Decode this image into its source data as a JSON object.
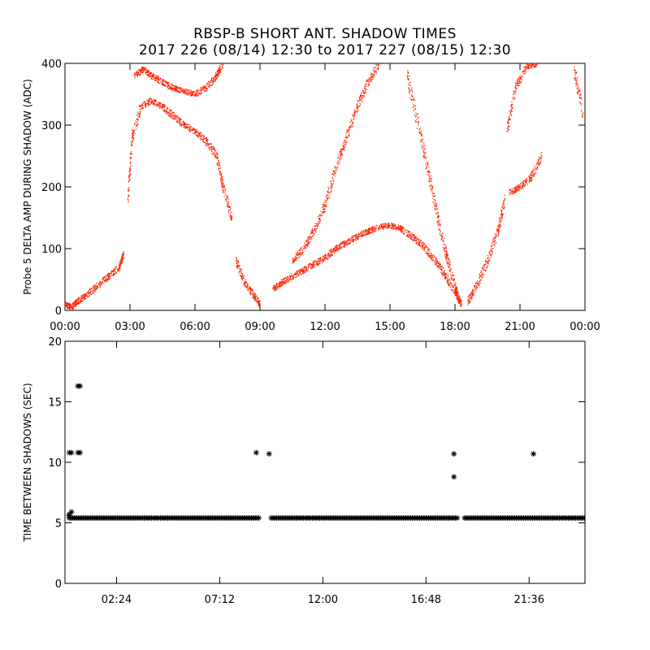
{
  "title_line1": "RBSP-B SHORT ANT. SHADOW TIMES",
  "title_line2": "2017 226 (08/14) 12:30 to 2017 227 (08/15) 12:30",
  "chart_data": [
    {
      "type": "scatter",
      "ylabel": "Probe 5 DELTA AMP DURING SHADOW (ADC)",
      "xlim": [
        0,
        24
      ],
      "ylim": [
        0,
        400
      ],
      "xticks": [
        0,
        3,
        6,
        9,
        12,
        15,
        18,
        21,
        24
      ],
      "xtick_labels": [
        "00:00",
        "03:00",
        "06:00",
        "09:00",
        "12:00",
        "15:00",
        "18:00",
        "21:00",
        "00:00"
      ],
      "yticks": [
        0,
        100,
        200,
        300,
        400
      ],
      "ytick_labels": [
        "0",
        "100",
        "200",
        "300",
        "400"
      ],
      "point_color": "#ff2000",
      "series": [
        {
          "x": [
            0.0,
            0.3,
            0.6,
            1.0,
            1.5,
            2.0,
            2.5,
            2.7
          ],
          "y": [
            10,
            5,
            15,
            25,
            40,
            55,
            70,
            90
          ]
        },
        {
          "x": [
            2.9,
            3.1,
            3.5,
            4.0,
            4.5,
            5.0,
            5.5,
            6.0,
            6.5,
            7.0,
            7.3,
            7.7
          ],
          "y": [
            180,
            280,
            330,
            340,
            330,
            315,
            300,
            290,
            275,
            250,
            200,
            150
          ]
        },
        {
          "x": [
            3.2,
            3.6,
            4.0,
            4.5,
            5.0,
            5.5,
            6.0,
            6.5,
            7.0,
            7.3
          ],
          "y": [
            380,
            390,
            380,
            370,
            360,
            355,
            350,
            360,
            380,
            400
          ]
        },
        {
          "x": [
            7.9,
            8.3,
            8.7,
            9.0
          ],
          "y": [
            80,
            45,
            25,
            10
          ]
        },
        {
          "x": [
            9.6,
            10.0,
            10.5,
            11.0,
            11.5,
            12.0,
            12.5,
            13.0,
            13.5,
            14.0,
            14.5,
            15.0,
            15.5,
            16.0,
            16.5,
            17.0,
            17.5,
            18.0,
            18.3
          ],
          "y": [
            35,
            45,
            55,
            65,
            75,
            85,
            100,
            110,
            120,
            128,
            135,
            138,
            132,
            120,
            105,
            85,
            60,
            30,
            10
          ]
        },
        {
          "x": [
            10.5,
            11.0,
            11.5,
            12.0,
            12.5,
            13.0,
            13.5,
            14.0,
            14.5
          ],
          "y": [
            80,
            100,
            130,
            170,
            230,
            280,
            330,
            370,
            400
          ]
        },
        {
          "x": [
            15.8,
            16.3,
            16.8,
            17.2,
            17.6,
            18.0,
            18.2
          ],
          "y": [
            380,
            300,
            220,
            150,
            90,
            40,
            15
          ]
        },
        {
          "x": [
            18.6,
            19.0,
            19.5,
            20.0,
            20.3
          ],
          "y": [
            15,
            40,
            80,
            130,
            180
          ]
        },
        {
          "x": [
            20.5,
            21.0,
            21.5,
            22.0
          ],
          "y": [
            190,
            200,
            215,
            250
          ]
        },
        {
          "x": [
            20.4,
            20.8,
            21.3,
            21.8
          ],
          "y": [
            290,
            360,
            395,
            400
          ]
        },
        {
          "x": [
            23.5,
            23.9
          ],
          "y": [
            390,
            320
          ]
        }
      ]
    },
    {
      "type": "scatter",
      "ylabel": "TIME BETWEEN SHADOWS (SEC)",
      "xlim": [
        0,
        24.2
      ],
      "ylim": [
        0,
        20
      ],
      "xticks": [
        2.4,
        7.2,
        12.0,
        16.8,
        21.6
      ],
      "xtick_labels": [
        "02:24",
        "07:12",
        "12:00",
        "16:48",
        "21:36"
      ],
      "yticks": [
        0,
        5,
        10,
        15,
        20
      ],
      "ytick_labels": [
        "0",
        "5",
        "10",
        "15",
        "20"
      ],
      "marker": "asterisk",
      "baseline": {
        "y": 5.4,
        "x_ranges": [
          [
            0.2,
            9.1
          ],
          [
            9.6,
            18.3
          ],
          [
            18.6,
            24.2
          ]
        ]
      },
      "points": [
        {
          "x": 0.2,
          "y": 10.8
        },
        {
          "x": 0.3,
          "y": 10.8
        },
        {
          "x": 0.2,
          "y": 5.7
        },
        {
          "x": 0.3,
          "y": 5.9
        },
        {
          "x": 0.2,
          "y": 5.6
        },
        {
          "x": 0.6,
          "y": 16.3
        },
        {
          "x": 0.7,
          "y": 16.3
        },
        {
          "x": 0.6,
          "y": 10.8
        },
        {
          "x": 0.7,
          "y": 10.8
        },
        {
          "x": 8.9,
          "y": 10.8
        },
        {
          "x": 9.5,
          "y": 10.7
        },
        {
          "x": 18.1,
          "y": 10.7
        },
        {
          "x": 18.1,
          "y": 8.8
        },
        {
          "x": 21.8,
          "y": 10.7
        }
      ]
    }
  ]
}
